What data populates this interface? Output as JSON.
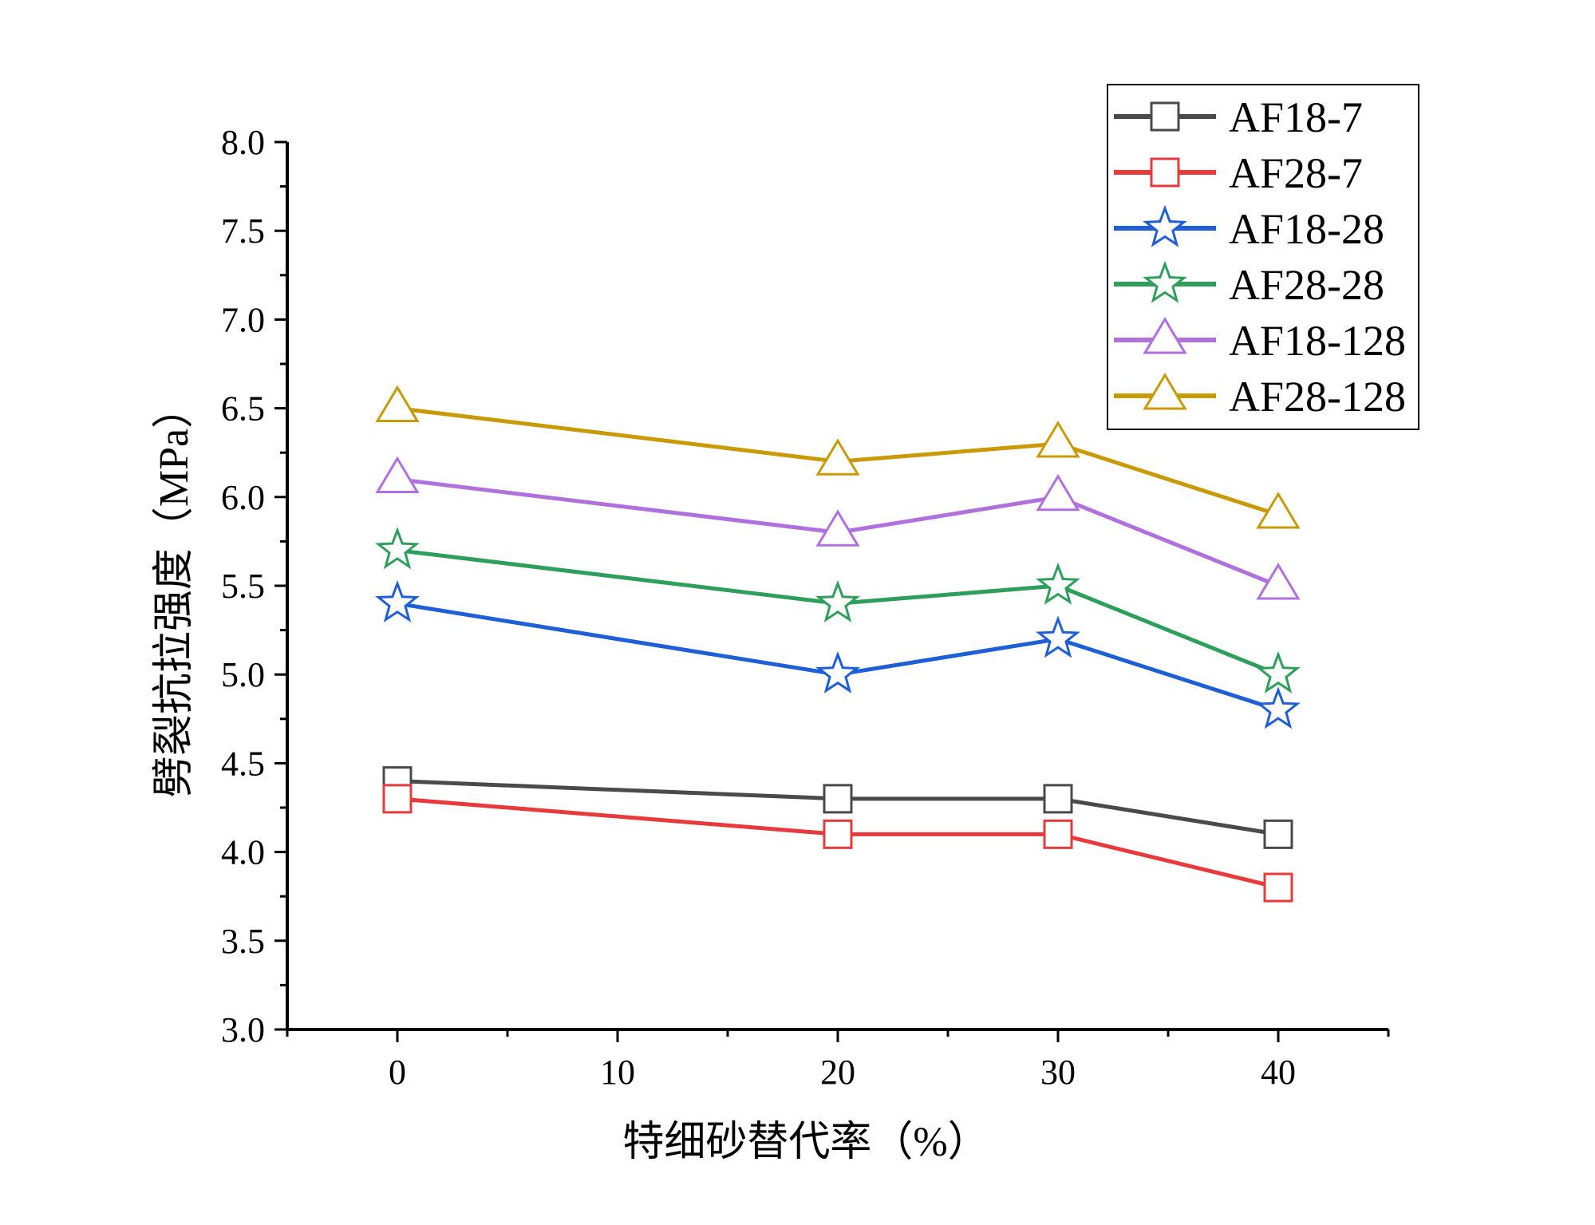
{
  "chart_data": {
    "type": "line",
    "title": "",
    "xlabel": "特细砂替代率（%）",
    "ylabel": "劈裂抗拉强度（MPa）",
    "xlim": [
      -5,
      45
    ],
    "ylim": [
      3.0,
      8.0
    ],
    "grid": false,
    "legend_position": "top-right",
    "x_ticks": [
      0,
      10,
      20,
      30,
      40
    ],
    "x_tick_labels": [
      "0",
      "10",
      "20",
      "30",
      "40"
    ],
    "y_ticks": [
      3.0,
      3.5,
      4.0,
      4.5,
      5.0,
      5.5,
      6.0,
      6.5,
      7.0,
      7.5,
      8.0
    ],
    "y_tick_labels": [
      "3.0",
      "3.5",
      "4.0",
      "4.5",
      "5.0",
      "5.5",
      "6.0",
      "6.5",
      "7.0",
      "7.5",
      "8.0"
    ],
    "x": [
      0,
      20,
      30,
      40
    ],
    "series": [
      {
        "name": "AF18-7",
        "color": "#4a4a4a",
        "marker": "square",
        "values": [
          4.4,
          4.3,
          4.3,
          4.1
        ]
      },
      {
        "name": "AF28-7",
        "color": "#e8393c",
        "marker": "square",
        "values": [
          4.3,
          4.1,
          4.1,
          3.8
        ]
      },
      {
        "name": "AF18-28",
        "color": "#1f5fd6",
        "marker": "star",
        "values": [
          5.4,
          5.0,
          5.2,
          4.8
        ]
      },
      {
        "name": "AF28-28",
        "color": "#2e9e5b",
        "marker": "star",
        "values": [
          5.7,
          5.4,
          5.5,
          5.0
        ]
      },
      {
        "name": "AF18-128",
        "color": "#b070de",
        "marker": "triangle",
        "values": [
          6.1,
          5.8,
          6.0,
          5.5
        ]
      },
      {
        "name": "AF28-128",
        "color": "#c99a06",
        "marker": "triangle",
        "values": [
          6.5,
          6.2,
          6.3,
          5.9
        ]
      }
    ]
  }
}
